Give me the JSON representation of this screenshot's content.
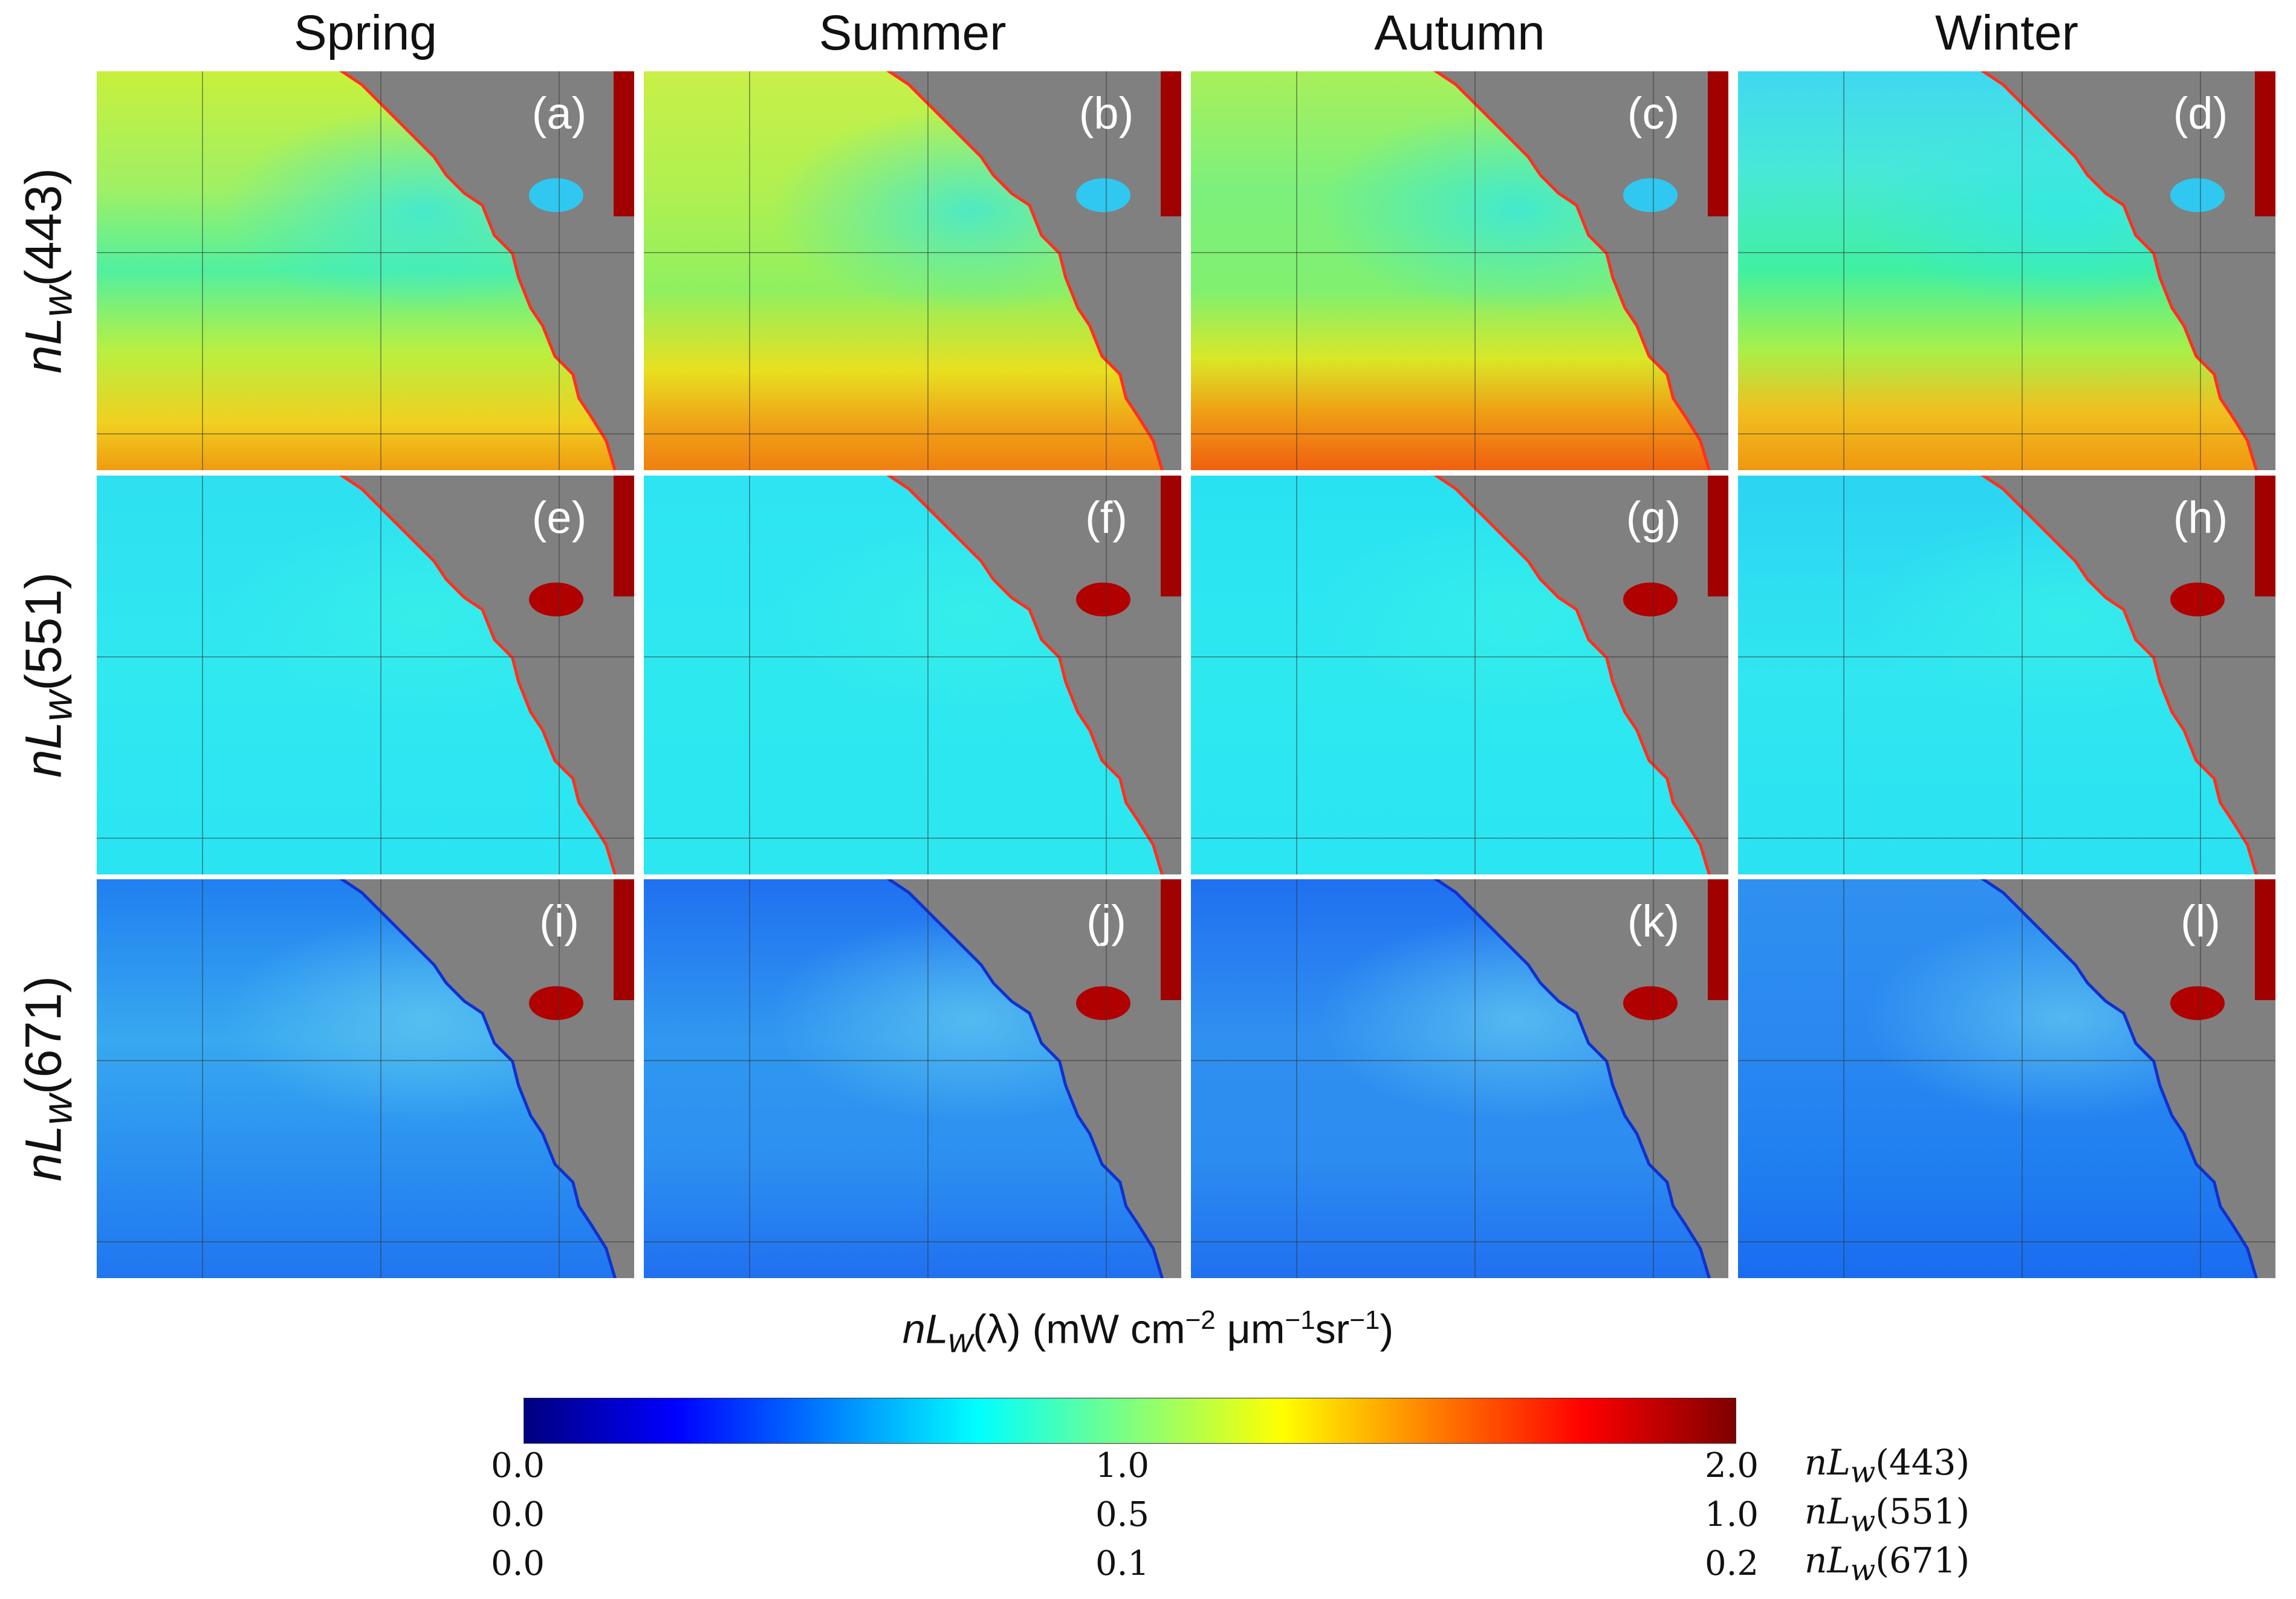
{
  "columns": [
    "Spring",
    "Summer",
    "Autumn",
    "Winter"
  ],
  "rows": [
    {
      "prefix": "nL",
      "sub": "w",
      "wavelength": "(443)"
    },
    {
      "prefix": "nL",
      "sub": "w",
      "wavelength": "(551)"
    },
    {
      "prefix": "nL",
      "sub": "w",
      "wavelength": "(671)"
    }
  ],
  "panel_labels": [
    "(a)",
    "(b)",
    "(c)",
    "(d)",
    "(e)",
    "(f)",
    "(g)",
    "(h)",
    "(i)",
    "(j)",
    "(k)",
    "(l)"
  ],
  "colorbar": {
    "title_prefix": "nL",
    "title_sub": "w",
    "title_lambda": "(λ)",
    "title_units_a": " (mW cm",
    "title_exp1": "−2",
    "title_units_b": " μm",
    "title_exp2": "−1",
    "title_units_c": "sr",
    "title_exp3": "−1",
    "title_close": ")",
    "colormap": "jet",
    "scales": [
      {
        "min": "0.0",
        "mid": "1.0",
        "max": "2.0",
        "prefix": "nL",
        "sub": "w",
        "band": "(443)"
      },
      {
        "min": "0.0",
        "mid": "0.5",
        "max": "1.0",
        "prefix": "nL",
        "sub": "w",
        "band": "(551)"
      },
      {
        "min": "0.0",
        "mid": "0.1",
        "max": "0.2",
        "prefix": "nL",
        "sub": "w",
        "band": "(671)"
      }
    ]
  },
  "colors": {
    "land": "#808080",
    "jet_stops": [
      "#00007f",
      "#0000ff",
      "#007fff",
      "#00ffff",
      "#7fff7f",
      "#ffff00",
      "#ff7f00",
      "#ff0000",
      "#7f0000"
    ]
  }
}
